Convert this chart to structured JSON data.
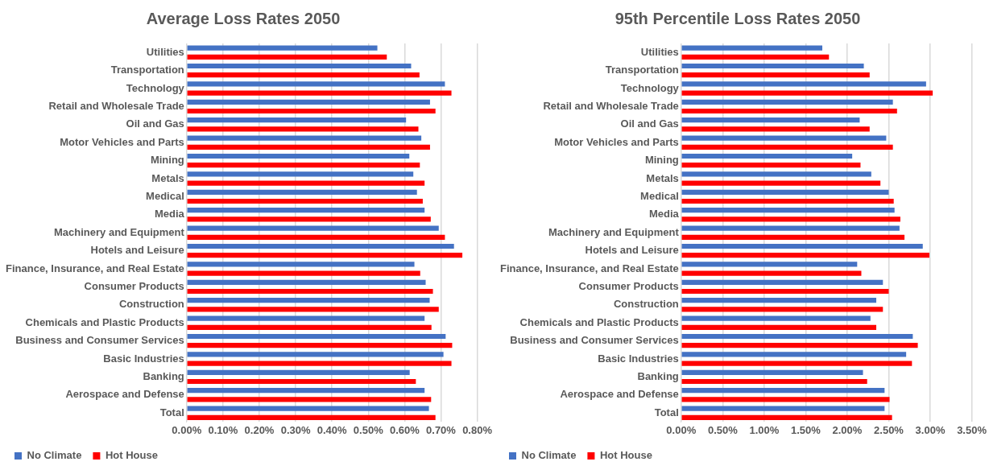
{
  "chart_data": [
    {
      "type": "bar",
      "orientation": "horizontal",
      "title": "Average Loss Rates 2050",
      "categories": [
        "Utilities",
        "Transportation",
        "Technology",
        "Retail and Wholesale Trade",
        "Oil and Gas",
        "Motor Vehicles and Parts",
        "Mining",
        "Metals",
        "Medical",
        "Media",
        "Machinery and Equipment",
        "Hotels and Leisure",
        "Finance, Insurance, and Real Estate",
        "Consumer Products",
        "Construction",
        "Chemicals and Plastic Products",
        "Business and Consumer Services",
        "Basic Industries",
        "Banking",
        "Aerospace and Defense",
        "Total"
      ],
      "series": [
        {
          "name": "No Climate",
          "color": "#4472c4",
          "values": [
            0.525,
            0.618,
            0.711,
            0.67,
            0.604,
            0.646,
            0.613,
            0.624,
            0.634,
            0.655,
            0.694,
            0.736,
            0.627,
            0.658,
            0.669,
            0.655,
            0.713,
            0.707,
            0.614,
            0.655,
            0.667
          ]
        },
        {
          "name": "Hot House",
          "color": "#ff0000",
          "values": [
            0.551,
            0.641,
            0.729,
            0.685,
            0.638,
            0.67,
            0.642,
            0.655,
            0.65,
            0.672,
            0.711,
            0.759,
            0.643,
            0.678,
            0.694,
            0.674,
            0.731,
            0.729,
            0.631,
            0.673,
            0.685
          ]
        }
      ],
      "xlim": [
        0,
        0.8
      ],
      "xticks": [
        {
          "value": 0,
          "label": "0.00%"
        },
        {
          "value": 0.1,
          "label": "0.10%"
        },
        {
          "value": 0.2,
          "label": "0.20%"
        },
        {
          "value": 0.3,
          "label": "0.30%"
        },
        {
          "value": 0.4,
          "label": "0.40%"
        },
        {
          "value": 0.5,
          "label": "0.50%"
        },
        {
          "value": 0.6,
          "label": "0.60%"
        },
        {
          "value": 0.7,
          "label": "0.70%"
        },
        {
          "value": 0.8,
          "label": "0.80%"
        }
      ],
      "grid": "x",
      "legend": "bottom left"
    },
    {
      "type": "bar",
      "orientation": "horizontal",
      "title": "95th Percentile Loss Rates 2050",
      "categories": [
        "Utilities",
        "Transportation",
        "Technology",
        "Retail and Wholesale Trade",
        "Oil and Gas",
        "Motor Vehicles and Parts",
        "Mining",
        "Metals",
        "Medical",
        "Media",
        "Machinery and Equipment",
        "Hotels and Leisure",
        "Finance, Insurance, and Real Estate",
        "Consumer Products",
        "Construction",
        "Chemicals and Plastic Products",
        "Business and Consumer Services",
        "Basic Industries",
        "Banking",
        "Aerospace and Defense",
        "Total"
      ],
      "series": [
        {
          "name": "No Climate",
          "color": "#4472c4",
          "values": [
            1.7,
            2.2,
            2.95,
            2.55,
            2.15,
            2.47,
            2.06,
            2.29,
            2.5,
            2.57,
            2.63,
            2.91,
            2.12,
            2.43,
            2.35,
            2.28,
            2.79,
            2.71,
            2.19,
            2.45,
            2.45
          ]
        },
        {
          "name": "Hot House",
          "color": "#ff0000",
          "values": [
            1.78,
            2.27,
            3.03,
            2.6,
            2.27,
            2.55,
            2.16,
            2.4,
            2.56,
            2.64,
            2.69,
            2.99,
            2.17,
            2.5,
            2.43,
            2.35,
            2.85,
            2.78,
            2.24,
            2.51,
            2.54
          ]
        }
      ],
      "xlim": [
        0,
        3.5
      ],
      "xticks": [
        {
          "value": 0,
          "label": "0.00%"
        },
        {
          "value": 0.5,
          "label": "0.50%"
        },
        {
          "value": 1,
          "label": "1.00%"
        },
        {
          "value": 1.5,
          "label": "1.50%"
        },
        {
          "value": 2,
          "label": "2.00%"
        },
        {
          "value": 2.5,
          "label": "2.50%"
        },
        {
          "value": 3,
          "label": "3.00%"
        },
        {
          "value": 3.5,
          "label": "3.50%"
        }
      ],
      "grid": "x",
      "legend": "bottom left"
    }
  ]
}
